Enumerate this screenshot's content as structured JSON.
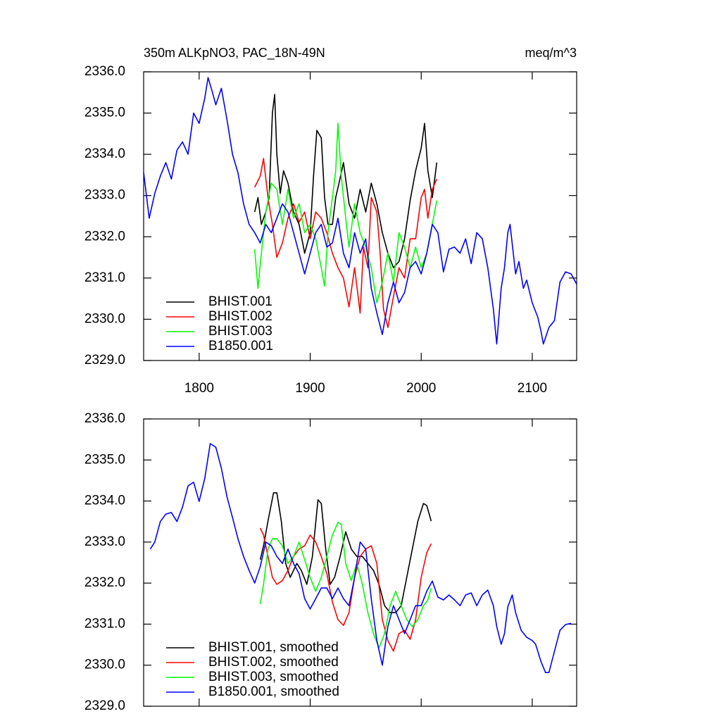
{
  "chart_data": [
    {
      "type": "line",
      "title": "350m ALKpNO3, PAC_18N-49N",
      "title_right": "meq/m^3",
      "xlim": [
        1750,
        2140
      ],
      "xticks": [
        1800,
        1900,
        2000,
        2100
      ],
      "xtick_labels": true,
      "ylim": [
        2329,
        2336
      ],
      "yticks": [
        {
          "value": 2329,
          "label": "2329.0"
        },
        {
          "value": 2330,
          "label": "2330.0"
        },
        {
          "value": 2331,
          "label": "2331.0"
        },
        {
          "value": 2332,
          "label": "2332.0"
        },
        {
          "value": 2333,
          "label": "2333.0"
        },
        {
          "value": 2334,
          "label": "2334.0"
        },
        {
          "value": 2335,
          "label": "2335.0"
        },
        {
          "value": 2336,
          "label": "2336.0"
        }
      ],
      "legend": "lower left",
      "series": [
        {
          "name": "BHIST.001",
          "color": "#000000",
          "x": [
            1850,
            1853,
            1856,
            1860,
            1863,
            1866,
            1868,
            1870,
            1873,
            1876,
            1880,
            1885,
            1890,
            1895,
            1900,
            1903,
            1906,
            1910,
            1913,
            1916,
            1920,
            1923,
            1926,
            1930,
            1935,
            1940,
            1945,
            1950,
            1955,
            1960,
            1965,
            1970,
            1975,
            1980,
            1985,
            1990,
            1995,
            2000,
            2003,
            2006,
            2010,
            2014
          ],
          "values": [
            2332.6,
            2332.95,
            2332.3,
            2332.6,
            2332.95,
            2335.0,
            2335.45,
            2334.0,
            2333.05,
            2333.6,
            2333.3,
            2332.6,
            2332.3,
            2331.6,
            2332.1,
            2333.47,
            2334.58,
            2334.4,
            2332.95,
            2332.3,
            2332.3,
            2332.95,
            2333.3,
            2333.8,
            2332.8,
            2332.45,
            2333.15,
            2332.6,
            2333.3,
            2332.8,
            2332.1,
            2331.6,
            2331.25,
            2331.4,
            2331.95,
            2332.88,
            2333.6,
            2334.15,
            2334.75,
            2333.6,
            2332.95,
            2333.8
          ]
        },
        {
          "name": "BHIST.002",
          "color": "#ff0000",
          "x": [
            1850,
            1855,
            1858,
            1862,
            1866,
            1870,
            1875,
            1880,
            1885,
            1890,
            1895,
            1900,
            1905,
            1910,
            1915,
            1920,
            1925,
            1930,
            1935,
            1940,
            1945,
            1948,
            1952,
            1955,
            1960,
            1963,
            1966,
            1970,
            1975,
            1980,
            1985,
            1990,
            1995,
            2000,
            2003,
            2006,
            2010,
            2014
          ],
          "values": [
            2333.2,
            2333.47,
            2333.9,
            2332.95,
            2332.3,
            2331.5,
            2331.85,
            2332.45,
            2332.8,
            2332.35,
            2332.6,
            2331.95,
            2332.6,
            2332.45,
            2332.1,
            2331.6,
            2331.25,
            2331.0,
            2330.3,
            2331.25,
            2330.15,
            2331.75,
            2331.25,
            2332.95,
            2332.6,
            2331.6,
            2330.25,
            2329.8,
            2330.55,
            2331.25,
            2331.0,
            2331.95,
            2331.95,
            2332.95,
            2333.15,
            2332.45,
            2333.15,
            2333.4
          ]
        },
        {
          "name": "BHIST.003",
          "color": "#00ff00",
          "x": [
            1850,
            1853,
            1856,
            1860,
            1865,
            1870,
            1875,
            1880,
            1885,
            1890,
            1895,
            1900,
            1905,
            1910,
            1913,
            1916,
            1920,
            1923,
            1925,
            1928,
            1932,
            1935,
            1940,
            1945,
            1950,
            1955,
            1960,
            1965,
            1970,
            1975,
            1980,
            1985,
            1990,
            1995,
            2000,
            2005,
            2010,
            2014
          ],
          "values": [
            2331.7,
            2330.75,
            2331.6,
            2332.6,
            2333.3,
            2333.15,
            2332.3,
            2333.15,
            2332.45,
            2332.8,
            2332.1,
            2332.3,
            2331.95,
            2331.25,
            2330.8,
            2332.1,
            2332.95,
            2333.6,
            2334.75,
            2333.47,
            2332.45,
            2331.75,
            2332.8,
            2332.1,
            2331.75,
            2331.25,
            2330.4,
            2330.9,
            2331.6,
            2330.9,
            2332.1,
            2331.75,
            2331.25,
            2331.75,
            2331.25,
            2331.6,
            2332.3,
            2332.88
          ]
        },
        {
          "name": "B1850.001",
          "color": "#0000ff",
          "x": [
            1750,
            1755,
            1760,
            1765,
            1770,
            1775,
            1780,
            1785,
            1790,
            1795,
            1800,
            1805,
            1808,
            1812,
            1815,
            1820,
            1825,
            1830,
            1835,
            1840,
            1845,
            1850,
            1855,
            1860,
            1865,
            1870,
            1875,
            1880,
            1885,
            1890,
            1895,
            1900,
            1905,
            1910,
            1915,
            1920,
            1925,
            1930,
            1935,
            1940,
            1945,
            1950,
            1955,
            1960,
            1965,
            1970,
            1975,
            1980,
            1985,
            1990,
            1995,
            2000,
            2005,
            2010,
            2015,
            2020,
            2025,
            2030,
            2035,
            2040,
            2045,
            2050,
            2055,
            2060,
            2065,
            2068,
            2072,
            2075,
            2078,
            2080,
            2085,
            2088,
            2092,
            2095,
            2100,
            2105,
            2108,
            2110,
            2115,
            2120,
            2125,
            2130,
            2135,
            2140
          ],
          "values": [
            2333.56,
            2332.45,
            2333.05,
            2333.47,
            2333.8,
            2333.4,
            2334.1,
            2334.3,
            2334.0,
            2335.0,
            2334.75,
            2335.35,
            2335.86,
            2335.5,
            2335.2,
            2335.6,
            2334.85,
            2334.0,
            2333.55,
            2332.8,
            2332.3,
            2332.1,
            2331.85,
            2332.3,
            2332.1,
            2332.45,
            2332.8,
            2332.6,
            2332.1,
            2331.6,
            2331.1,
            2331.6,
            2332.1,
            2332.3,
            2331.75,
            2331.85,
            2332.45,
            2331.6,
            2331.25,
            2332.1,
            2331.6,
            2331.95,
            2330.75,
            2330.15,
            2329.63,
            2330.4,
            2330.9,
            2330.4,
            2330.65,
            2331.25,
            2331.4,
            2331.1,
            2331.6,
            2332.3,
            2332.1,
            2331.15,
            2331.7,
            2331.75,
            2331.6,
            2331.95,
            2331.35,
            2332.1,
            2331.95,
            2331.25,
            2330.25,
            2329.4,
            2330.75,
            2331.25,
            2332.1,
            2332.3,
            2331.1,
            2331.4,
            2330.75,
            2330.95,
            2330.4,
            2330.05,
            2329.7,
            2329.4,
            2329.8,
            2329.97,
            2330.9,
            2331.15,
            2331.1,
            2330.85
          ]
        }
      ]
    },
    {
      "type": "line",
      "xlim": [
        1750,
        2140
      ],
      "xticks": [
        1800,
        1900,
        2000,
        2100
      ],
      "xtick_labels": false,
      "ylim": [
        2329,
        2336
      ],
      "yticks": [
        {
          "value": 2329,
          "label": "2329.0"
        },
        {
          "value": 2330,
          "label": "2330.0"
        },
        {
          "value": 2331,
          "label": "2331.0"
        },
        {
          "value": 2332,
          "label": "2332.0"
        },
        {
          "value": 2333,
          "label": "2333.0"
        },
        {
          "value": 2334,
          "label": "2334.0"
        },
        {
          "value": 2335,
          "label": "2335.0"
        },
        {
          "value": 2336,
          "label": "2336.0"
        }
      ],
      "legend": "lower left",
      "series": [
        {
          "name": "BHIST.001, smoothed",
          "color": "#000000",
          "x": [
            1855,
            1858,
            1862,
            1867,
            1870,
            1874,
            1878,
            1882,
            1888,
            1892,
            1897,
            1902,
            1907,
            1910,
            1914,
            1918,
            1922,
            1927,
            1932,
            1937,
            1942,
            1947,
            1952,
            1957,
            1962,
            1967,
            1972,
            1977,
            1982,
            1987,
            1992,
            1997,
            2002,
            2005,
            2009
          ],
          "values": [
            2332.57,
            2332.91,
            2333.51,
            2334.2,
            2334.2,
            2333.51,
            2332.48,
            2332.14,
            2332.48,
            2332.31,
            2331.97,
            2332.65,
            2334.03,
            2333.94,
            2332.83,
            2331.97,
            2332.14,
            2332.65,
            2333.25,
            2332.83,
            2332.65,
            2332.65,
            2332.48,
            2332.31,
            2331.97,
            2331.45,
            2331.28,
            2331.28,
            2331.45,
            2332.14,
            2332.83,
            2333.51,
            2333.94,
            2333.89,
            2333.51
          ]
        },
        {
          "name": "BHIST.002, smoothed",
          "color": "#ff0000",
          "x": [
            1855,
            1858,
            1862,
            1866,
            1870,
            1875,
            1880,
            1885,
            1890,
            1895,
            1900,
            1905,
            1910,
            1915,
            1920,
            1925,
            1930,
            1935,
            1940,
            1945,
            1950,
            1955,
            1960,
            1965,
            1970,
            1975,
            1980,
            1985,
            1990,
            1995,
            2000,
            2005,
            2009
          ],
          "values": [
            2333.34,
            2333.17,
            2332.65,
            2332.14,
            2331.97,
            2332.06,
            2332.31,
            2332.65,
            2332.83,
            2332.91,
            2333.17,
            2333.0,
            2332.65,
            2332.23,
            2331.54,
            2331.11,
            2330.97,
            2331.28,
            2332.14,
            2332.65,
            2332.83,
            2332.91,
            2332.48,
            2331.11,
            2330.6,
            2330.34,
            2330.77,
            2330.85,
            2330.63,
            2331.11,
            2332.14,
            2332.74,
            2332.96
          ]
        },
        {
          "name": "BHIST.003, smoothed",
          "color": "#00ff00",
          "x": [
            1855,
            1858,
            1862,
            1866,
            1870,
            1875,
            1880,
            1885,
            1890,
            1895,
            1900,
            1905,
            1910,
            1915,
            1920,
            1925,
            1928,
            1932,
            1937,
            1942,
            1947,
            1952,
            1957,
            1962,
            1967,
            1972,
            1977,
            1982,
            1987,
            1992,
            1997,
            2002,
            2006,
            2009
          ],
          "values": [
            2331.49,
            2331.97,
            2332.83,
            2333.08,
            2333.08,
            2332.91,
            2332.48,
            2332.65,
            2333.0,
            2332.57,
            2332.14,
            2331.8,
            2332.14,
            2332.65,
            2333.17,
            2333.48,
            2333.43,
            2332.48,
            2332.06,
            2332.48,
            2331.97,
            2331.28,
            2330.77,
            2330.42,
            2330.77,
            2331.45,
            2331.8,
            2331.45,
            2331.11,
            2330.94,
            2331.11,
            2331.45,
            2331.59,
            2331.88
          ]
        },
        {
          "name": "B1850.001, smoothed",
          "color": "#0000ff",
          "x": [
            1756,
            1760,
            1765,
            1770,
            1775,
            1780,
            1785,
            1790,
            1795,
            1800,
            1805,
            1810,
            1815,
            1820,
            1825,
            1830,
            1835,
            1840,
            1845,
            1850,
            1855,
            1860,
            1865,
            1870,
            1875,
            1880,
            1885,
            1890,
            1895,
            1900,
            1905,
            1910,
            1915,
            1920,
            1925,
            1930,
            1935,
            1940,
            1945,
            1950,
            1955,
            1960,
            1965,
            1970,
            1975,
            1980,
            1985,
            1990,
            1995,
            2000,
            2005,
            2010,
            2015,
            2020,
            2025,
            2030,
            2035,
            2040,
            2045,
            2050,
            2055,
            2060,
            2065,
            2068,
            2072,
            2075,
            2078,
            2082,
            2085,
            2090,
            2095,
            2100,
            2103,
            2108,
            2112,
            2115,
            2120,
            2125,
            2130,
            2135
          ],
          "values": [
            2332.83,
            2333.0,
            2333.5,
            2333.68,
            2333.72,
            2333.5,
            2333.85,
            2334.37,
            2334.46,
            2333.99,
            2334.54,
            2335.4,
            2335.31,
            2334.8,
            2334.11,
            2333.6,
            2333.08,
            2332.65,
            2332.31,
            2332.0,
            2332.4,
            2333.0,
            2332.91,
            2332.65,
            2332.48,
            2332.83,
            2332.48,
            2332.23,
            2331.62,
            2331.37,
            2331.62,
            2331.88,
            2331.88,
            2331.62,
            2331.88,
            2331.62,
            2331.45,
            2332.14,
            2333.0,
            2332.83,
            2331.62,
            2330.6,
            2330.0,
            2330.94,
            2331.45,
            2331.11,
            2330.77,
            2331.11,
            2331.45,
            2331.45,
            2331.8,
            2332.05,
            2331.66,
            2331.59,
            2331.71,
            2331.59,
            2331.45,
            2331.71,
            2331.76,
            2331.45,
            2331.71,
            2331.83,
            2331.45,
            2330.94,
            2330.51,
            2330.77,
            2331.42,
            2331.71,
            2331.28,
            2330.85,
            2330.68,
            2330.6,
            2330.51,
            2330.08,
            2329.82,
            2329.82,
            2330.34,
            2330.85,
            2330.99,
            2331.02
          ]
        }
      ]
    }
  ]
}
